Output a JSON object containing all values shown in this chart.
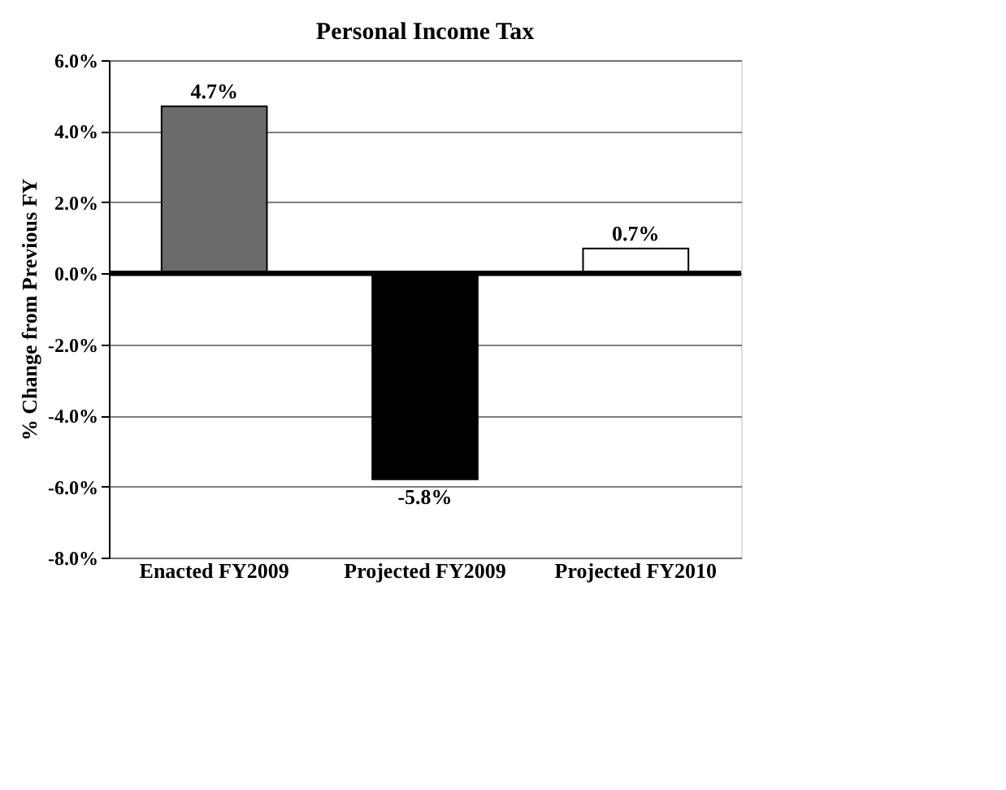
{
  "chart_data": {
    "type": "bar",
    "title": "Personal Income Tax",
    "ylabel": "% Change from Previous FY",
    "categories": [
      "Enacted FY2009",
      "Projected FY2009",
      "Projected FY2010"
    ],
    "values": [
      4.7,
      -5.8,
      0.7
    ],
    "colors": [
      "#6b6b6b",
      "#000000",
      "#ffffff"
    ],
    "value_labels": [
      "4.7%",
      "-5.8%",
      "0.7%"
    ],
    "ylim": [
      -8,
      6
    ],
    "yticks": [
      {
        "value": -8,
        "label": "-8.0%"
      },
      {
        "value": -6,
        "label": "-6.0%"
      },
      {
        "value": -4,
        "label": "-4.0%"
      },
      {
        "value": -2,
        "label": "-2.0%"
      },
      {
        "value": 0,
        "label": "0.0%"
      },
      {
        "value": 2,
        "label": "2.0%"
      },
      {
        "value": 4,
        "label": "4.0%"
      },
      {
        "value": 6,
        "label": "6.0%"
      }
    ],
    "grid": "y"
  }
}
